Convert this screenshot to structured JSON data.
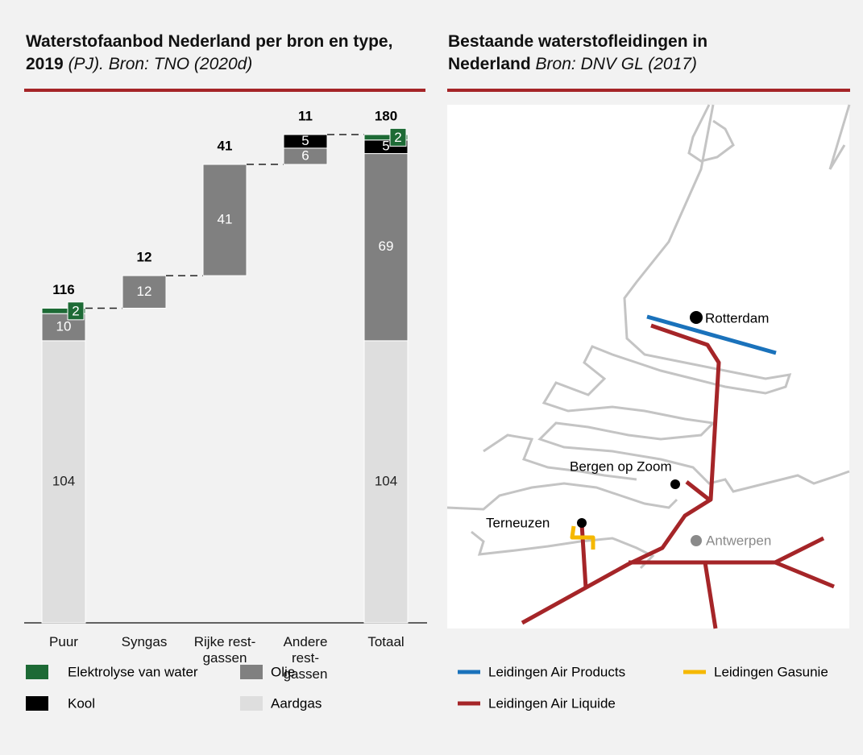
{
  "chart_data": {
    "type": "waterfall",
    "title": "Waterstofaanbod Nederland per bron en type, 2019",
    "subtitle": "(PJ). Bron: TNO (2020d)",
    "categories": [
      "Puur",
      "Syngas",
      "Rijke rest-\ngassen",
      "Andere\nrest-\ngassen",
      "Totaal"
    ],
    "series": [
      {
        "name": "Aardgas",
        "color": "#dedede",
        "values": [
          104,
          null,
          null,
          null,
          104
        ]
      },
      {
        "name": "Olie",
        "color": "#808080",
        "values": [
          10,
          12,
          41,
          6,
          69
        ]
      },
      {
        "name": "Kool",
        "color": "#000000",
        "values": [
          null,
          null,
          null,
          5,
          5
        ]
      },
      {
        "name": "Elektrolyse van water",
        "color": "#1d6a35",
        "values": [
          2,
          null,
          null,
          null,
          2
        ]
      }
    ],
    "totals": [
      116,
      12,
      41,
      11,
      180
    ],
    "ylim": [
      0,
      180
    ]
  },
  "map": {
    "title": "Bestaande waterstofleidingen in",
    "title_line2": "Nederland",
    "source": "Bron: DNV GL (2017)",
    "cities": [
      "Rotterdam",
      "Bergen op Zoom",
      "Terneuzen",
      "Antwerpen"
    ],
    "legend": [
      {
        "name": "Leidingen Air Products",
        "color": "#1a72bb"
      },
      {
        "name": "Leidingen Gasunie",
        "color": "#f5b800"
      },
      {
        "name": "Leidingen Air Liquide",
        "color": "#a52528"
      }
    ]
  }
}
